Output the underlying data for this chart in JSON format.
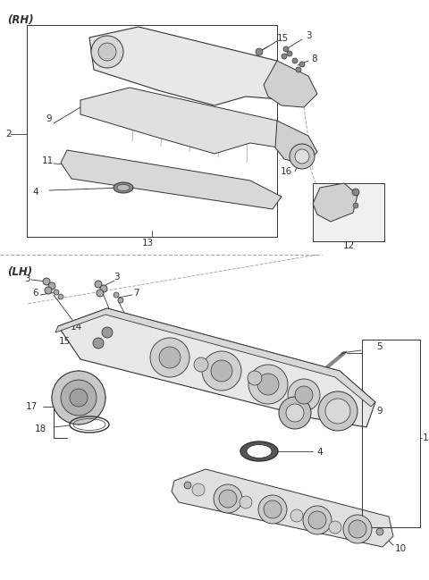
{
  "bg_color": "#ffffff",
  "line_color": "#333333",
  "gray_fill": "#e8e8e8",
  "gray_dark": "#aaaaaa",
  "gray_mid": "#cccccc",
  "dashed_color": "#aaaaaa",
  "section_rh": "(RH)",
  "section_lh": "(LH)",
  "figsize": [
    4.8,
    6.49
  ],
  "dpi": 100,
  "font_size": 7.5
}
